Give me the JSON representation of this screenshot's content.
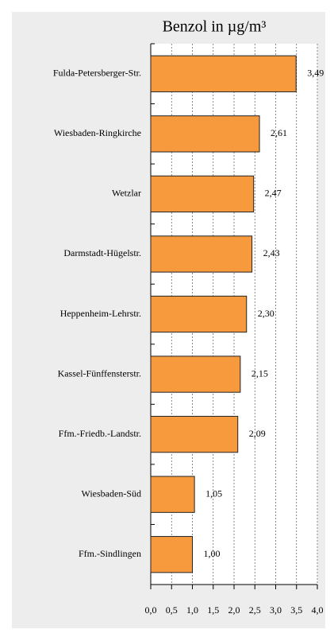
{
  "chart_data": {
    "type": "bar",
    "orientation": "horizontal",
    "title": "Benzol in µg/m³",
    "categories": [
      "Fulda-Petersberger-Str.",
      "Wiesbaden-Ringkirche",
      "Wetzlar",
      "Darmstadt-Hügelstr.",
      "Heppenheim-Lehrstr.",
      "Kassel-Fünffensterstr.",
      "Ffm.-Friedb.-Landstr.",
      "Wiesbaden-Süd",
      "Ffm.-Sindlingen"
    ],
    "values": [
      3.49,
      2.61,
      2.47,
      2.43,
      2.3,
      2.15,
      2.09,
      1.05,
      1.0
    ],
    "value_labels": [
      "3,49",
      "2,61",
      "2,47",
      "2,43",
      "2,30",
      "2,15",
      "2,09",
      "1,05",
      "1,00"
    ],
    "color": "#f79a3e",
    "xlim": [
      0,
      4
    ],
    "xticks": [
      {
        "value": 0,
        "label": "0,0"
      },
      {
        "value": 0.5,
        "label": "0,5"
      },
      {
        "value": 1,
        "label": "1,0"
      },
      {
        "value": 1.5,
        "label": "1,5"
      },
      {
        "value": 2,
        "label": "2,0"
      },
      {
        "value": 2.5,
        "label": "2,5"
      },
      {
        "value": 3,
        "label": "3,0"
      },
      {
        "value": 3.5,
        "label": "3,5"
      },
      {
        "value": 4,
        "label": "4,0"
      }
    ],
    "grid": true
  }
}
